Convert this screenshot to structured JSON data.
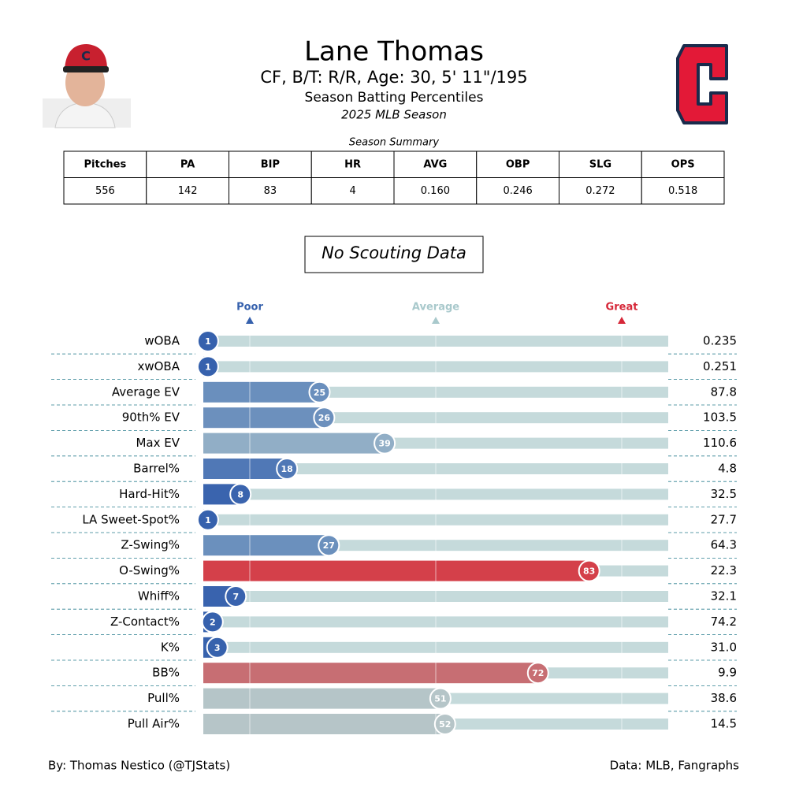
{
  "header": {
    "title": "Lane Thomas",
    "subtitle": "CF, B/T: R/R, Age: 30, 5' 11\"/195",
    "description": "Season Batting Percentiles",
    "season": "2025 MLB Season"
  },
  "table": {
    "title": "Season Summary",
    "columns": [
      "Pitches",
      "PA",
      "BIP",
      "HR",
      "AVG",
      "OBP",
      "SLG",
      "OPS"
    ],
    "rows": [
      [
        "556",
        "142",
        "83",
        "4",
        "0.160",
        "0.246",
        "0.272",
        "0.518"
      ]
    ]
  },
  "note": "No Scouting Data",
  "chart_data": {
    "type": "bar",
    "orientation": "horizontal",
    "categories": [
      "wOBA",
      "xwOBA",
      "Average EV",
      "90th% EV",
      "Max EV",
      "Barrel%",
      "Hard-Hit%",
      "LA Sweet-Spot%",
      "Z-Swing%",
      "O-Swing%",
      "Whiff%",
      "Z-Contact%",
      "K%",
      "BB%",
      "Pull%",
      "Pull Air%"
    ],
    "values": [
      1,
      1,
      25,
      26,
      39,
      18,
      8,
      1,
      27,
      83,
      7,
      2,
      3,
      72,
      51,
      52
    ],
    "colors": [
      "#3661ad",
      "#3661ad",
      "#6a8fbd",
      "#6c90bd",
      "#91aec6",
      "#5078b6",
      "#3a64ae",
      "#3661ad",
      "#6b90bd",
      "#d4404a",
      "#3963ae",
      "#3661ad",
      "#3762ad",
      "#c76e73",
      "#b5c5c8",
      "#b6c5c8"
    ],
    "stat_values": [
      "0.235",
      "0.251",
      "87.8",
      "103.5",
      "110.6",
      "4.8",
      "32.5",
      "27.7",
      "64.3",
      "22.3",
      "32.1",
      "74.2",
      "31.0",
      "9.9",
      "38.6",
      "14.5"
    ],
    "xlim": [
      0,
      100
    ],
    "xticks": [
      {
        "value": 10,
        "label": "Poor"
      },
      {
        "value": 50,
        "label": "Average"
      },
      {
        "value": 90,
        "label": "Great"
      }
    ],
    "tick_colors": [
      "#3661ad",
      "#a9c9cc",
      "#d62839"
    ],
    "track_color": "#c5dadb"
  },
  "footer": {
    "left": "By: Thomas Nestico (@TJStats)",
    "right": "Data: MLB, Fangraphs"
  }
}
